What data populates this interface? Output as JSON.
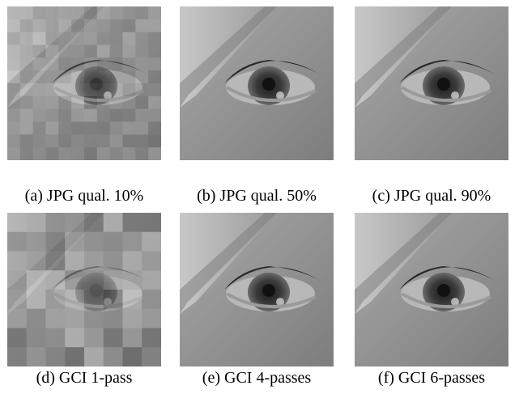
{
  "figure": {
    "panels": [
      {
        "caption": "(a) JPG qual. 10%"
      },
      {
        "caption": "(b) JPG qual. 50%"
      },
      {
        "caption": "(c) JPG qual. 90%"
      },
      {
        "caption": "(d) GCI 1-pass"
      },
      {
        "caption": "(e) GCI 4-passes"
      },
      {
        "caption": "(f) GCI 6-passes"
      }
    ]
  }
}
